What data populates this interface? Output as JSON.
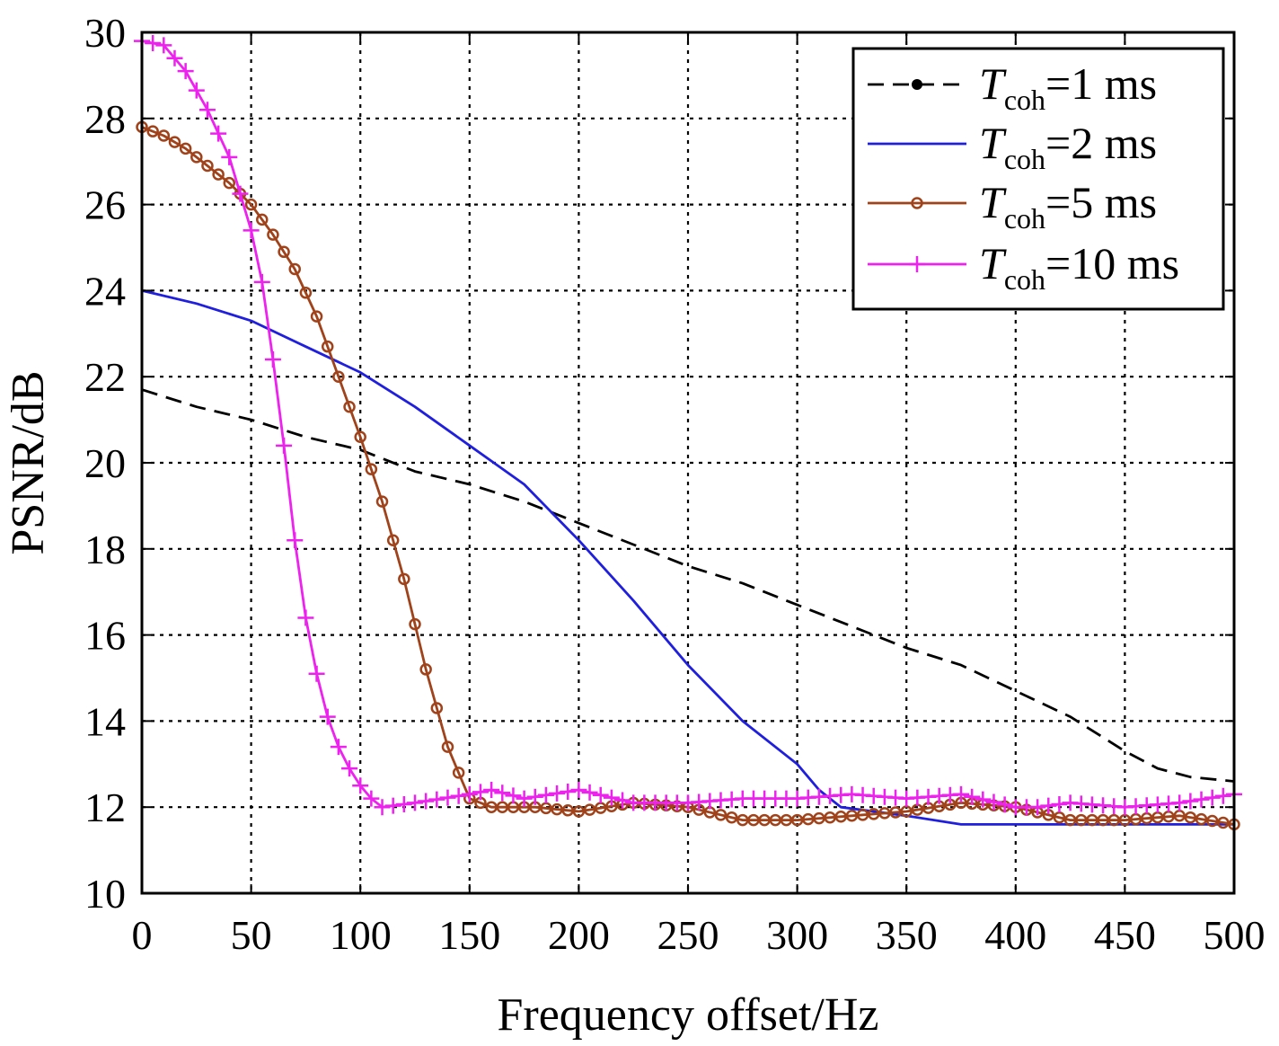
{
  "chart_data": {
    "type": "line",
    "title": "",
    "xlabel": "Frequency offset/Hz",
    "ylabel": "PSNR/dB",
    "xlim": [
      0,
      500
    ],
    "ylim": [
      10,
      30
    ],
    "xticks": [
      0,
      50,
      100,
      150,
      200,
      250,
      300,
      350,
      400,
      450,
      500
    ],
    "yticks": [
      10,
      12,
      14,
      16,
      18,
      20,
      22,
      24,
      26,
      28,
      30
    ],
    "grid": true,
    "legend_position": "top-right",
    "series": [
      {
        "name": "T_coh=1 ms",
        "legend": {
          "symbol": "T",
          "sub": "coh",
          "rest": "=1 ms"
        },
        "color": "#000000",
        "line_style": "dashed",
        "marker": "dot",
        "x": [
          0,
          25,
          50,
          75,
          100,
          125,
          150,
          175,
          200,
          225,
          250,
          275,
          300,
          325,
          350,
          375,
          400,
          425,
          450,
          465,
          480,
          500
        ],
        "y": [
          21.7,
          21.3,
          21.0,
          20.6,
          20.3,
          19.8,
          19.5,
          19.1,
          18.6,
          18.1,
          17.6,
          17.2,
          16.7,
          16.2,
          15.7,
          15.3,
          14.7,
          14.1,
          13.3,
          12.9,
          12.7,
          12.6
        ]
      },
      {
        "name": "T_coh=2 ms",
        "legend": {
          "symbol": "T",
          "sub": "coh",
          "rest": "=2 ms"
        },
        "color": "#1f1fdd",
        "line_style": "solid",
        "marker": "none",
        "x": [
          0,
          25,
          50,
          75,
          100,
          125,
          150,
          175,
          200,
          225,
          250,
          275,
          300,
          310,
          320,
          350,
          375,
          400,
          450,
          500
        ],
        "y": [
          24.0,
          23.7,
          23.3,
          22.7,
          22.1,
          21.3,
          20.4,
          19.5,
          18.2,
          16.8,
          15.3,
          14.0,
          13.0,
          12.4,
          12.0,
          11.8,
          11.6,
          11.6,
          11.6,
          11.6
        ]
      },
      {
        "name": "T_coh=5 ms",
        "legend": {
          "symbol": "T",
          "sub": "coh",
          "rest": "=5 ms"
        },
        "color": "#a0421a",
        "line_style": "solid",
        "marker": "circle",
        "x": [
          0,
          10,
          20,
          30,
          40,
          50,
          60,
          70,
          80,
          90,
          100,
          110,
          120,
          130,
          140,
          145,
          150,
          160,
          180,
          200,
          225,
          250,
          275,
          300,
          325,
          350,
          375,
          400,
          425,
          450,
          475,
          500
        ],
        "y": [
          27.8,
          27.6,
          27.3,
          26.9,
          26.5,
          26.0,
          25.3,
          24.5,
          23.4,
          22.0,
          20.6,
          19.1,
          17.3,
          15.2,
          13.4,
          12.8,
          12.2,
          12.0,
          12.0,
          11.9,
          12.1,
          12.0,
          11.7,
          11.7,
          11.8,
          11.9,
          12.1,
          12.0,
          11.7,
          11.7,
          11.8,
          11.6
        ]
      },
      {
        "name": "T_coh=10 ms",
        "legend": {
          "symbol": "T",
          "sub": "coh",
          "rest": "=10 ms"
        },
        "color": "#ee22ee",
        "line_style": "solid",
        "marker": "plus",
        "x": [
          0,
          10,
          20,
          30,
          40,
          50,
          55,
          60,
          65,
          70,
          75,
          80,
          85,
          90,
          95,
          100,
          105,
          110,
          125,
          150,
          160,
          175,
          200,
          225,
          250,
          275,
          300,
          325,
          350,
          375,
          400,
          410,
          425,
          450,
          475,
          500
        ],
        "y": [
          29.8,
          29.7,
          29.1,
          28.2,
          27.1,
          25.4,
          24.2,
          22.4,
          20.4,
          18.2,
          16.4,
          15.1,
          14.1,
          13.4,
          12.9,
          12.5,
          12.2,
          12.0,
          12.1,
          12.3,
          12.4,
          12.2,
          12.4,
          12.1,
          12.1,
          12.2,
          12.2,
          12.3,
          12.2,
          12.3,
          12.0,
          12.0,
          12.1,
          12.0,
          12.1,
          12.3
        ]
      }
    ]
  }
}
